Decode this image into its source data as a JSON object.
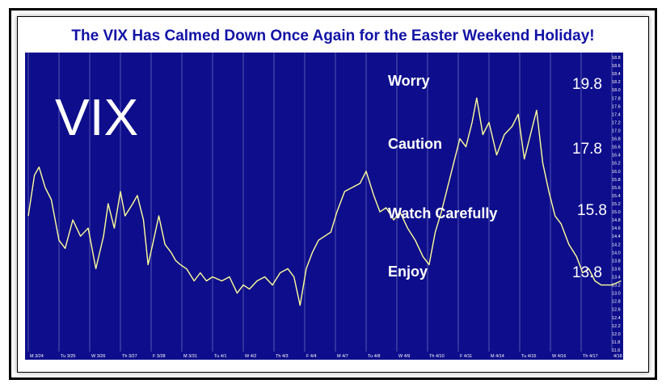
{
  "chart_data": {
    "type": "line",
    "title": "The VIX Has Calmed Down Once Again for the Easter Weekend Holiday!",
    "series": [
      {
        "name": "VIX"
      }
    ],
    "ylim": [
      11.6,
      18.8
    ],
    "y_ticks": [
      "11.6",
      "11.8",
      "12.0",
      "12.2",
      "12.4",
      "12.6",
      "12.8",
      "13.0",
      "13.2",
      "13.4",
      "13.6",
      "13.8",
      "14.0",
      "14.2",
      "14.4",
      "14.6",
      "14.8",
      "15.0",
      "15.2",
      "15.4",
      "15.6",
      "15.8",
      "16.0",
      "16.2",
      "16.4",
      "16.6",
      "16.8",
      "17.0",
      "17.2",
      "17.4",
      "17.6",
      "17.8",
      "18.0",
      "18.2",
      "18.4",
      "18.6",
      "18.8"
    ],
    "x_ticks": [
      "M 3/24",
      "Tu 3/25",
      "W 3/26",
      "Th 3/27",
      "F 3/28",
      "M 3/31",
      "Tu 4/1",
      "W 4/2",
      "Th 4/3",
      "F 4/4",
      "M 4/7",
      "Tu 4/8",
      "W 4/9",
      "Th 4/10",
      "F 4/11",
      "M 4/14",
      "Tu 4/15",
      "W 4/16",
      "Th 4/17",
      "4/18 F"
    ],
    "points": [
      [
        0,
        14.9
      ],
      [
        0.2,
        15.9
      ],
      [
        0.35,
        16.1
      ],
      [
        0.55,
        15.6
      ],
      [
        0.75,
        15.3
      ],
      [
        1.0,
        14.3
      ],
      [
        1.2,
        14.1
      ],
      [
        1.45,
        14.8
      ],
      [
        1.7,
        14.4
      ],
      [
        1.95,
        14.6
      ],
      [
        2.2,
        13.6
      ],
      [
        2.45,
        14.4
      ],
      [
        2.6,
        15.2
      ],
      [
        2.8,
        14.6
      ],
      [
        3.0,
        15.5
      ],
      [
        3.15,
        14.9
      ],
      [
        3.4,
        15.2
      ],
      [
        3.55,
        15.4
      ],
      [
        3.75,
        14.8
      ],
      [
        3.9,
        13.7
      ],
      [
        4.05,
        14.2
      ],
      [
        4.25,
        14.9
      ],
      [
        4.45,
        14.2
      ],
      [
        4.65,
        14.0
      ],
      [
        4.8,
        13.8
      ],
      [
        4.95,
        13.7
      ],
      [
        5.15,
        13.6
      ],
      [
        5.4,
        13.3
      ],
      [
        5.6,
        13.5
      ],
      [
        5.8,
        13.3
      ],
      [
        6.0,
        13.4
      ],
      [
        6.3,
        13.3
      ],
      [
        6.55,
        13.4
      ],
      [
        6.8,
        13.0
      ],
      [
        7.0,
        13.2
      ],
      [
        7.2,
        13.1
      ],
      [
        7.45,
        13.3
      ],
      [
        7.7,
        13.4
      ],
      [
        7.95,
        13.2
      ],
      [
        8.2,
        13.5
      ],
      [
        8.45,
        13.6
      ],
      [
        8.65,
        13.4
      ],
      [
        8.85,
        12.7
      ],
      [
        9.05,
        13.6
      ],
      [
        9.25,
        14.0
      ],
      [
        9.45,
        14.3
      ],
      [
        9.65,
        14.4
      ],
      [
        9.85,
        14.5
      ],
      [
        10.05,
        15.0
      ],
      [
        10.3,
        15.5
      ],
      [
        10.55,
        15.6
      ],
      [
        10.8,
        15.7
      ],
      [
        11.0,
        16.0
      ],
      [
        11.25,
        15.4
      ],
      [
        11.45,
        15.0
      ],
      [
        11.65,
        15.1
      ],
      [
        11.9,
        14.8
      ],
      [
        12.1,
        15.0
      ],
      [
        12.35,
        14.6
      ],
      [
        12.6,
        14.3
      ],
      [
        12.85,
        13.9
      ],
      [
        13.05,
        13.7
      ],
      [
        13.25,
        14.5
      ],
      [
        13.45,
        15.0
      ],
      [
        13.65,
        15.6
      ],
      [
        13.85,
        16.2
      ],
      [
        14.05,
        16.8
      ],
      [
        14.25,
        16.6
      ],
      [
        14.45,
        17.2
      ],
      [
        14.6,
        17.8
      ],
      [
        14.8,
        16.9
      ],
      [
        15.0,
        17.2
      ],
      [
        15.25,
        16.4
      ],
      [
        15.5,
        16.9
      ],
      [
        15.75,
        17.1
      ],
      [
        15.95,
        17.4
      ],
      [
        16.15,
        16.3
      ],
      [
        16.35,
        16.9
      ],
      [
        16.55,
        17.5
      ],
      [
        16.75,
        16.2
      ],
      [
        16.95,
        15.5
      ],
      [
        17.15,
        14.9
      ],
      [
        17.35,
        14.7
      ],
      [
        17.6,
        14.2
      ],
      [
        17.85,
        13.9
      ],
      [
        18.05,
        13.5
      ],
      [
        18.25,
        13.6
      ],
      [
        18.45,
        13.3
      ],
      [
        18.65,
        13.2
      ],
      [
        18.85,
        13.2
      ],
      [
        19.0,
        13.2
      ],
      [
        19.3,
        13.3
      ]
    ],
    "zones": [
      {
        "label": "Worry",
        "level": "19.8"
      },
      {
        "label": "Caution",
        "level": "17.8"
      },
      {
        "label": "Watch Carefully",
        "level": "15.8"
      },
      {
        "label": "Enjoy",
        "level": "13.8"
      }
    ],
    "colors": {
      "background": "#0e0e8c",
      "line": "#ffff99",
      "title": "#1212a6",
      "grid": "#6a6ac0"
    }
  },
  "big_label": "VIX"
}
